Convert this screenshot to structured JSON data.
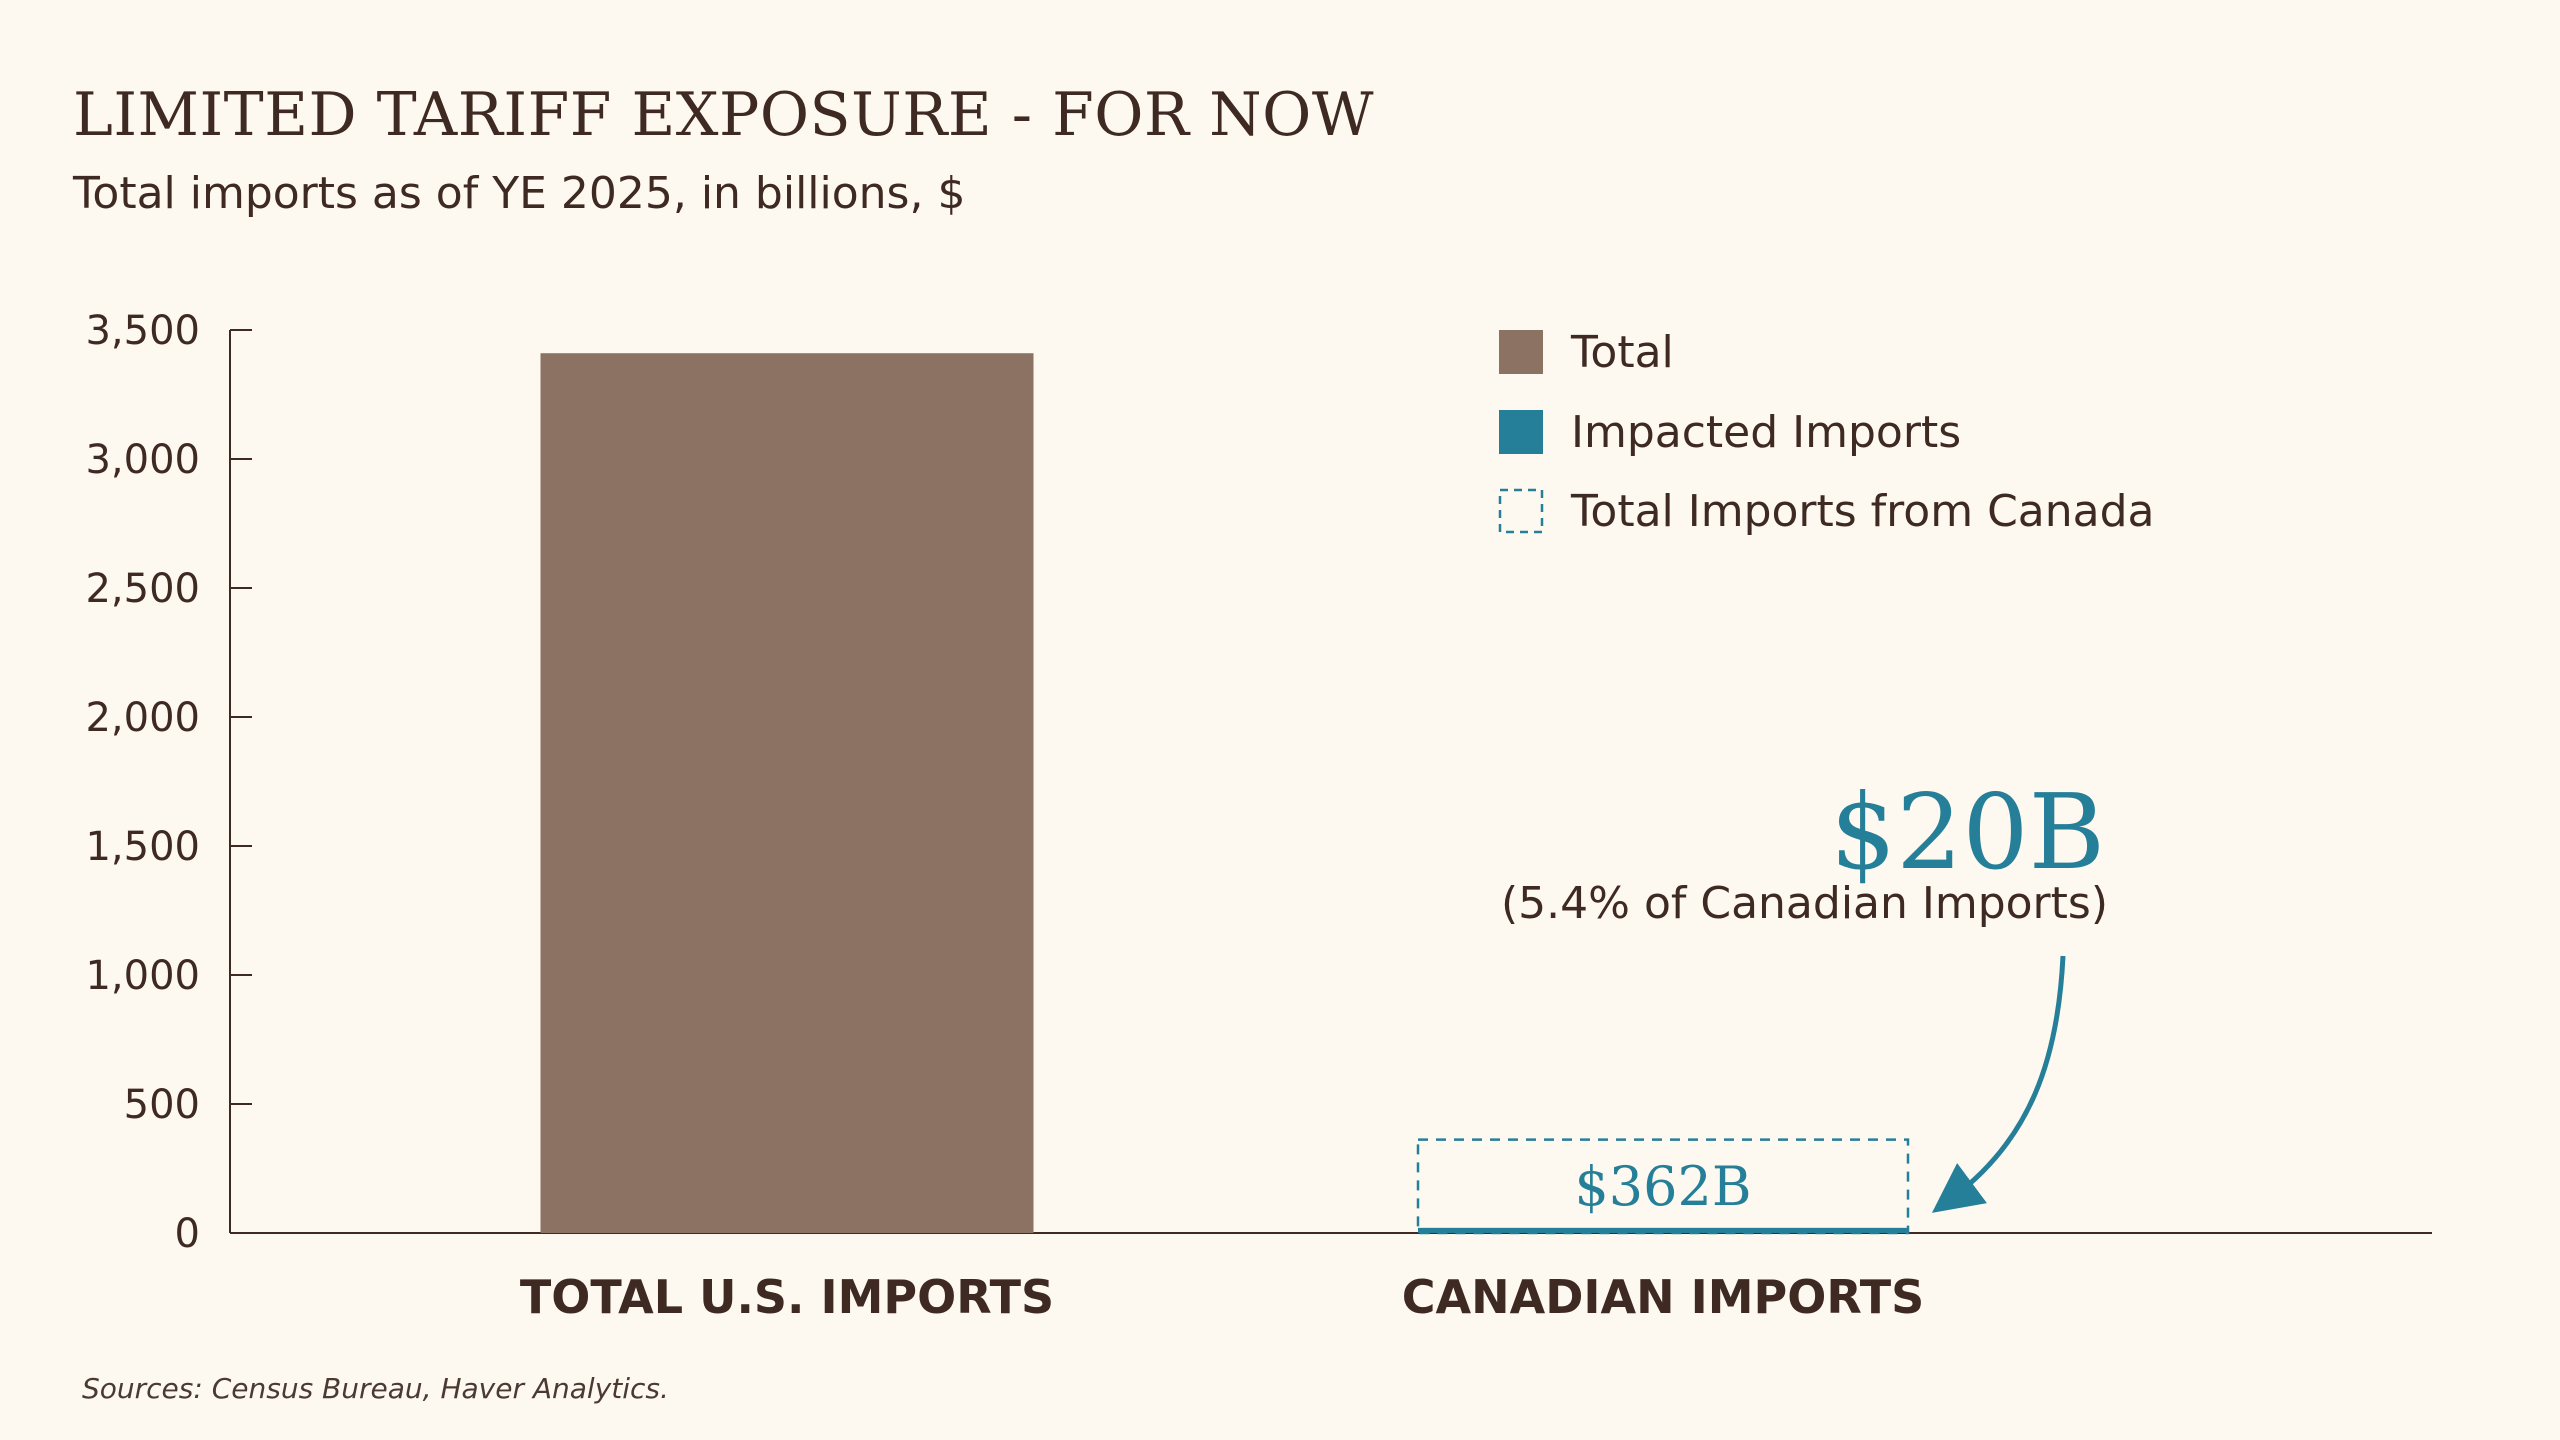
{
  "title": "LIMITED TARIFF EXPOSURE - FOR NOW",
  "subtitle": "Total imports as of YE 2025, in billions, $",
  "source": "Sources: Census Bureau, Haver Analytics.",
  "colors": {
    "total": "#8b7262",
    "impacted": "#267f98",
    "canada_outline": "#267f98",
    "axis": "#3e2a22",
    "text": "#3e2a22",
    "background": "#fdf9f0"
  },
  "chart_data": {
    "type": "bar",
    "title": "LIMITED TARIFF EXPOSURE - FOR NOW",
    "subtitle": "Total imports as of YE 2025, in billions, $",
    "categories": [
      "TOTAL U.S. IMPORTS",
      "CANADIAN IMPORTS"
    ],
    "series": [
      {
        "name": "Total",
        "values": [
          3410,
          null
        ]
      },
      {
        "name": "Impacted Imports",
        "values": [
          null,
          20
        ]
      },
      {
        "name": "Total Imports from Canada",
        "values": [
          null,
          362
        ]
      }
    ],
    "yticks": [
      0,
      500,
      1000,
      1500,
      2000,
      2500,
      3000,
      3500
    ],
    "ytick_labels": [
      "0",
      "500",
      "1,000",
      "1,500",
      "2,000",
      "2,500",
      "3,000",
      "3,500"
    ],
    "ylim": [
      0,
      3500
    ],
    "xlabel": "",
    "ylabel": "",
    "legend_position": "top-right",
    "grid": false,
    "annotations": {
      "canada_label": "$362B",
      "impacted_value": "$20B",
      "impacted_note": "(5.4% of Canadian Imports)"
    }
  }
}
